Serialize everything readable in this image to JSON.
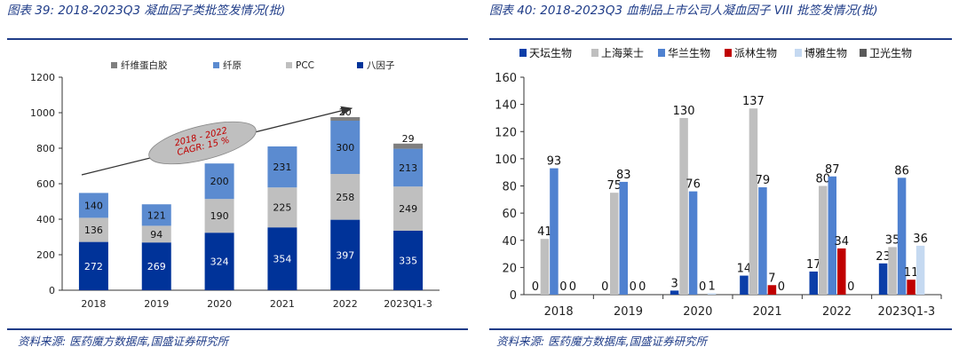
{
  "left_panel": {
    "title": "图表 39:  2018-2023Q3 凝血因子类批签发情况(批)",
    "source": "资料来源:  医药魔方数据库,国盛证券研究所",
    "annotation": "2018 - 2022\nCAGR:  15 %"
  },
  "right_panel": {
    "title": "图表 40:  2018-2023Q3  血制品上市公司人凝血因子  VIII  批签发情况(批)",
    "source": "资料来源:  医药魔方数据库,国盛证券研究所"
  },
  "colors": {
    "heading": "#1f3c88",
    "fibrinogen_glue": "#7f7f7f",
    "fibrinogen": "#5b8bd0",
    "pcc": "#bfbfbf",
    "factor8": "#003399",
    "tiantan": "#0b3ea8",
    "shanghai_raas": "#bfbfbf",
    "hualan": "#4f81d0",
    "pailin": "#c00000",
    "boya": "#c5d9f1",
    "weiguang": "#595959"
  },
  "chart_data": [
    {
      "type": "bar",
      "stacked": true,
      "categories": [
        "2018",
        "2019",
        "2020",
        "2021",
        "2022",
        "2023Q1-3"
      ],
      "series": [
        {
          "name": "八因子",
          "values": [
            272,
            269,
            324,
            354,
            397,
            335
          ],
          "color": "#003399"
        },
        {
          "name": "PCC",
          "values": [
            136,
            94,
            190,
            225,
            258,
            249
          ],
          "color": "#bfbfbf"
        },
        {
          "name": "纤原",
          "values": [
            140,
            121,
            200,
            231,
            300,
            213
          ],
          "color": "#5b8bd0"
        },
        {
          "name": "纤维蛋白胶",
          "values": [
            null,
            null,
            null,
            null,
            20,
            29
          ],
          "color": "#7f7f7f"
        }
      ],
      "legend_order": [
        "纤维蛋白胶",
        "纤原",
        "PCC",
        "八因子"
      ],
      "ylim": [
        0,
        1200
      ],
      "yticks": [
        0,
        200,
        400,
        600,
        800,
        1000,
        1200
      ],
      "legend": "top",
      "title": "",
      "xlabel": "",
      "ylabel": ""
    },
    {
      "type": "bar",
      "categories": [
        "2018",
        "2019",
        "2020",
        "2021",
        "2022",
        "2023Q1-3"
      ],
      "series": [
        {
          "name": "天坛生物",
          "values": [
            0,
            0,
            3,
            14,
            17,
            23
          ],
          "color": "#0b3ea8"
        },
        {
          "name": "上海莱士",
          "values": [
            41,
            75,
            130,
            137,
            80,
            35
          ],
          "color": "#bfbfbf"
        },
        {
          "name": "华兰生物",
          "values": [
            93,
            83,
            76,
            79,
            87,
            86
          ],
          "color": "#4f81d0"
        },
        {
          "name": "派林生物",
          "values": [
            0,
            0,
            0,
            7,
            34,
            11
          ],
          "color": "#c00000"
        },
        {
          "name": "博雅生物",
          "values": [
            0,
            0,
            1,
            0,
            0,
            36
          ],
          "color": "#c5d9f1"
        },
        {
          "name": "卫光生物",
          "values": [
            0,
            0,
            0,
            0,
            0,
            0
          ],
          "color": "#595959"
        }
      ],
      "ylim": [
        0,
        160
      ],
      "yticks": [
        0,
        20,
        40,
        60,
        80,
        100,
        120,
        140,
        160
      ],
      "legend": "top",
      "title": "",
      "xlabel": "",
      "ylabel": ""
    }
  ]
}
